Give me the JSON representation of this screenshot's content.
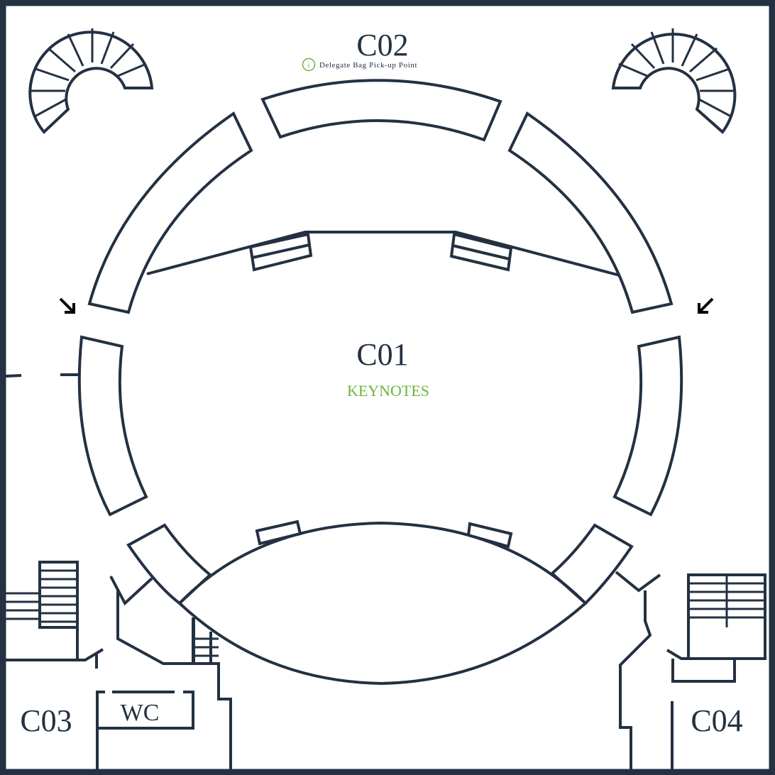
{
  "map": {
    "rooms": {
      "c01": {
        "label": "C01",
        "subtitle": "KEYNOTES"
      },
      "c02": {
        "label": "C02"
      },
      "c03": {
        "label": "C03"
      },
      "c04": {
        "label": "C04"
      },
      "wc": {
        "label": "WC"
      }
    },
    "poi": {
      "delegate_bag": {
        "label": "Delegate Bag Pick-up Point",
        "icon": "info-icon",
        "number": "i"
      }
    },
    "colors": {
      "wall": "#233142",
      "accent": "#6db33f",
      "background": "#ffffff",
      "arrow": "#000000"
    },
    "icons": [
      "spiral-staircase-icon",
      "entrance-arrow-icon",
      "info-icon"
    ]
  }
}
